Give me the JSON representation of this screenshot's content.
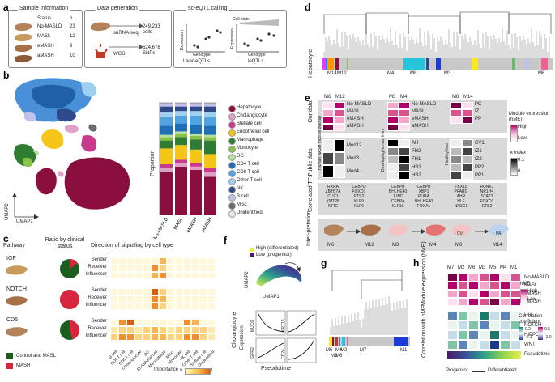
{
  "panel_labels": {
    "a": "a",
    "b": "b",
    "c": "c",
    "d": "d",
    "e": "e",
    "f": "f",
    "g": "g",
    "h": "h"
  },
  "panel_a": {
    "sample_title": "Sample information",
    "status_header": "Status",
    "n_header": "n",
    "samples": [
      {
        "status": "No-MASLD",
        "n": "23"
      },
      {
        "status": "MASL",
        "n": "12"
      },
      {
        "status": "eMASH",
        "n": "9"
      },
      {
        "status": "aMASH",
        "n": "10"
      }
    ],
    "datagen_title": "Data generation",
    "snrna": "snRNA-seq",
    "wgs": "WGS",
    "cells": "249,233 cells",
    "snps": "624,678 SNPs",
    "eqtl_title": "sc-eQTL calling",
    "cell_state": "Cell state",
    "expression": "Expression",
    "genotype": "Genotype",
    "liver_eqtls": "Liver-eQTLs",
    "ieqtls": "ieQTLs"
  },
  "panel_b": {
    "umap1": "UMAP1",
    "umap2": "UMAP2",
    "ylabel": "Proportion",
    "legend": [
      {
        "name": "Hepatocyte",
        "color": "#8b0f3e"
      },
      {
        "name": "Cholangiocyte",
        "color": "#e0a0c8"
      },
      {
        "name": "Stellate cell",
        "color": "#c93a8c"
      },
      {
        "name": "Endothelial cell",
        "color": "#f5c518"
      },
      {
        "name": "Macrophage",
        "color": "#2e7d32"
      },
      {
        "name": "Monocyte",
        "color": "#8bc34a"
      },
      {
        "name": "DC",
        "color": "#b7e0a0"
      },
      {
        "name": "CD4 T cell",
        "color": "#1e6fb8"
      },
      {
        "name": "CD8 T cell",
        "color": "#4fa3e0"
      },
      {
        "name": "Other T cell",
        "color": "#9fd0f0"
      },
      {
        "name": "NK",
        "color": "#2f4a8a"
      },
      {
        "name": "B cell",
        "color": "#c0c0e8"
      },
      {
        "name": "Misc.",
        "color": "#6b6b6b"
      },
      {
        "name": "Unidentified",
        "color": "#e8e8e8"
      }
    ]
  },
  "chart_data": {
    "type": "bar",
    "title": "",
    "xlabel": "",
    "ylabel": "Proportion",
    "ylim": [
      0,
      1
    ],
    "categories": [
      "No-MASLD",
      "MASL",
      "eMASH",
      "aMASH"
    ],
    "series": [
      {
        "name": "Hepatocyte",
        "values": [
          0.38,
          0.43,
          0.4,
          0.34
        ]
      },
      {
        "name": "Cholangiocyte",
        "values": [
          0.04,
          0.03,
          0.03,
          0.04
        ]
      },
      {
        "name": "Stellate cell",
        "values": [
          0.03,
          0.03,
          0.03,
          0.04
        ]
      },
      {
        "name": "Endothelial cell",
        "values": [
          0.14,
          0.13,
          0.12,
          0.12
        ]
      },
      {
        "name": "Macrophage",
        "values": [
          0.07,
          0.07,
          0.09,
          0.12
        ]
      },
      {
        "name": "Monocyte",
        "values": [
          0.03,
          0.03,
          0.03,
          0.03
        ]
      },
      {
        "name": "DC",
        "values": [
          0.02,
          0.02,
          0.02,
          0.02
        ]
      },
      {
        "name": "CD4 T cell",
        "values": [
          0.08,
          0.07,
          0.08,
          0.08
        ]
      },
      {
        "name": "CD8 T cell",
        "values": [
          0.08,
          0.07,
          0.08,
          0.08
        ]
      },
      {
        "name": "Other T cell",
        "values": [
          0.04,
          0.04,
          0.04,
          0.04
        ]
      },
      {
        "name": "NK",
        "values": [
          0.05,
          0.04,
          0.04,
          0.05
        ]
      },
      {
        "name": "B cell",
        "values": [
          0.03,
          0.03,
          0.03,
          0.03
        ]
      },
      {
        "name": "Misc.",
        "values": [
          0.005,
          0.005,
          0.005,
          0.005
        ]
      },
      {
        "name": "Unidentified",
        "values": [
          0.005,
          0.005,
          0.005,
          0.005
        ]
      }
    ]
  },
  "panel_c": {
    "pathway": "Pathway",
    "ratio_title": "Ratio by clinical status",
    "direction_title": "Direction of signaling by cell type",
    "pathways": [
      "IGF",
      "NOTCH",
      "CD6"
    ],
    "roles": [
      "Sender",
      "Receiver",
      "Influencer"
    ],
    "celltypes": [
      "B cell",
      "CD4 T cell",
      "CD8 T cell",
      "Cholangiocyte",
      "DC",
      "Endothelial cell",
      "Macrophage",
      "Misc.",
      "Monocyte",
      "NK cell",
      "Other T cell",
      "Stellate cell",
      "Unidentified"
    ],
    "legend_control": "Control and MASL",
    "legend_mash": "MASH",
    "importance": "Importance",
    "imp_min": "0",
    "imp_max": "1"
  },
  "panel_d": {
    "ylabel": "Hepatocyte",
    "modules": [
      "M14",
      "M12",
      "M4",
      "M8",
      "M3",
      "M6"
    ]
  },
  "panel_e": {
    "our_data": "Our data",
    "public_data": "Public data",
    "correlated_tfs": "Correlated TFs",
    "interpretation": "Inter-pretation",
    "human_nash": "Human NASH module overlap",
    "developing": "Developing human liver",
    "healthy": "Healthy liver",
    "groups": [
      {
        "modules": [
          "M6",
          "M12"
        ],
        "status": [
          "No-MASLD",
          "MASL",
          "eMASH",
          "aMASH"
        ],
        "public": [
          "Mod12",
          "Mod3",
          "Mod4"
        ],
        "tfs1": "RXRA\nZBTB7A\nCUX1\nKMT2B\nNFIC",
        "tfs2": "CEBPD\nFOXO1\nETS2\nKLF9\nKLF6"
      },
      {
        "modules": [
          "M3",
          "M4"
        ],
        "status": [
          "No-MASLD",
          "MASL",
          "eMASH",
          "aMASH"
        ],
        "public": [
          "AH",
          "FH2",
          "FH1",
          "HB1",
          "HB2"
        ],
        "tfs1": "CEBPB\nBHLHE40\nJUND\nCEBPA\nKLF10",
        "tfs2": "CEBPB\nXBP1\nPURA\nBHLHE40\nFOXA1"
      },
      {
        "modules": [
          "M8",
          "M14"
        ],
        "status": [
          "PC",
          "IZ",
          "PP"
        ],
        "public": [
          "CV1",
          "IZ1",
          "IZ2",
          "PP2",
          "PP1"
        ],
        "tfs1": "TBX15\nPPARG\nAHR\nHLF\nNR3C1",
        "tfs2": "RUNX1\nNR1H4\nSTAT3\nFOXO1\nETS2"
      }
    ],
    "module_expression": "Module expression (hME)",
    "high": "High",
    "low": "Low",
    "kappa": "κ index",
    "kappa_max": "0.1",
    "kappa_min": "0",
    "cv": "CV",
    "pa": "PA"
  },
  "panel_f": {
    "umap1": "UMAP1",
    "umap2": "UMAP2",
    "high_label": "High (differentiated)",
    "low_label": "Low (progenitor)",
    "cholangiocyte": "Cholangiocyte",
    "expression": "Expression",
    "pseudotime": "Pseudotime",
    "genes": [
      "MUC6",
      "KRT19",
      "IGFR2",
      "CD24"
    ]
  },
  "panel_g": {
    "modules": [
      "M5",
      "M3",
      "M4",
      "M2",
      "M6",
      "M7",
      "M1"
    ]
  },
  "panel_h": {
    "columns": [
      "M7",
      "M2",
      "M6",
      "M3",
      "M5",
      "M4",
      "M1"
    ],
    "module_expression": "Module expression (hME)",
    "status": [
      "No-MASLD",
      "MASL",
      "eMASH",
      "aMASH"
    ],
    "correlation_label": "Correlation with hME",
    "pathways": [
      "HH",
      "NOTCH",
      "HIPPO",
      "WNT"
    ],
    "pseudotime": "Pseudotime",
    "progenitor": "Progenitor",
    "differentiated": "Differentiated",
    "hme": "hME",
    "high": "High",
    "low": "Low",
    "corr_coef": "Correlation coefficient",
    "c1": "0.2",
    "c2": "0.5",
    "c3": "-0.1",
    "c4": "-1.0"
  }
}
